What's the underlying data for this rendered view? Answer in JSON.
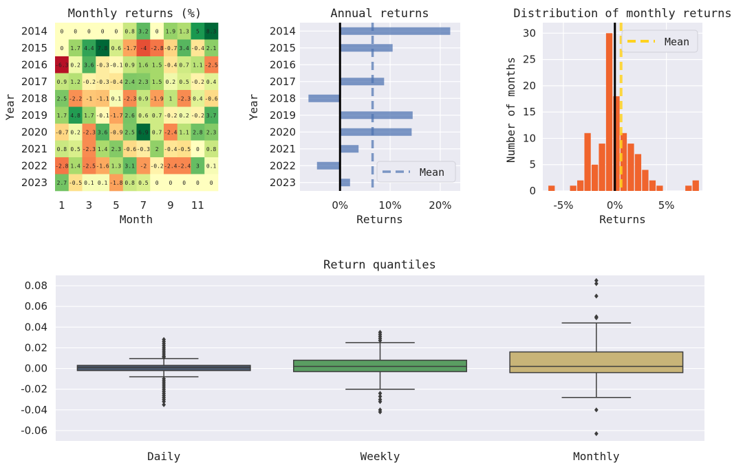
{
  "chart_data": [
    {
      "type": "heatmap",
      "title": "Monthly returns (%)",
      "xlabel": "Month",
      "ylabel": "Year",
      "years": [
        "2014",
        "2015",
        "2016",
        "2017",
        "2018",
        "2019",
        "2020",
        "2021",
        "2022",
        "2023"
      ],
      "months": [
        1,
        2,
        3,
        4,
        5,
        6,
        7,
        8,
        9,
        10,
        11,
        12
      ],
      "xticks": [
        "1",
        "3",
        "5",
        "7",
        "9",
        "11"
      ],
      "values": [
        [
          0,
          0,
          0,
          0,
          0,
          0.8,
          3.2,
          0,
          1.9,
          1.3,
          5,
          8.3
        ],
        [
          0,
          1.7,
          4.4,
          7.8,
          0.6,
          -1.7,
          -4,
          -2.8,
          -0.7,
          3.4,
          -0.4,
          2.1
        ],
        [
          -6.3,
          0.2,
          3.6,
          -0.3,
          -0.1,
          0.9,
          1.6,
          1.5,
          -0.4,
          0.7,
          1.1,
          -2.5
        ],
        [
          0.9,
          1.2,
          -0.2,
          -0.3,
          -0.4,
          2.4,
          2.3,
          1.5,
          0.2,
          0.5,
          -0.2,
          0.4
        ],
        [
          2.5,
          -2.2,
          -1,
          -1.1,
          0.1,
          -2.3,
          0.9,
          -1.9,
          1,
          -2.3,
          0.4,
          -0.6
        ],
        [
          1.7,
          4.8,
          1.7,
          -0.1,
          -1.7,
          2.6,
          0.6,
          0.7,
          -0.2,
          0.2,
          -0.2,
          3.7
        ],
        [
          -0.7,
          0.2,
          -2.3,
          3.6,
          -0.9,
          2.5,
          6.9,
          0.7,
          -2.4,
          1.1,
          2.8,
          2.3
        ],
        [
          0.8,
          0.5,
          -2.3,
          1.4,
          2.3,
          -0.6,
          -0.3,
          2,
          -0.4,
          -0.5,
          0,
          0.8
        ],
        [
          -2.8,
          1.4,
          -2.5,
          -1.6,
          1.3,
          3.1,
          -2,
          -0.2,
          -2.4,
          -2.4,
          3,
          0.1
        ],
        [
          2.7,
          -0.5,
          0.1,
          0.1,
          -1.8,
          0.8,
          0.5,
          0,
          0,
          0,
          0,
          0
        ]
      ],
      "colormap": "RdYlGn",
      "value_range": [
        -7,
        7
      ]
    },
    {
      "type": "bar",
      "orientation": "horizontal",
      "title": "Annual returns",
      "xlabel": "Returns",
      "ylabel": "Year",
      "categories": [
        "2014",
        "2015",
        "2016",
        "2017",
        "2018",
        "2019",
        "2020",
        "2021",
        "2022",
        "2023"
      ],
      "values": [
        22,
        10.5,
        0,
        8.8,
        -6.3,
        14.5,
        14.3,
        3.7,
        -4.6,
        2
      ],
      "mean": 6.5,
      "xlim": [
        -8,
        24
      ],
      "xticks": [
        "0%",
        "10%",
        "20%"
      ],
      "legend": [
        "Mean"
      ],
      "legend_position": "lower-right",
      "bar_color": "#4c72b0",
      "mean_color": "#4c72b0"
    },
    {
      "type": "histogram",
      "title": "Distribution of monthly returns",
      "xlabel": "Returns",
      "ylabel": "Number of months",
      "bin_edges": [
        -6.5,
        -5.8,
        -5.1,
        -4.4,
        -3.7,
        -3.0,
        -2.3,
        -1.6,
        -0.9,
        -0.2,
        0.5,
        1.2,
        1.9,
        2.6,
        3.3,
        4.0,
        4.7,
        5.4,
        6.1,
        6.8,
        7.5,
        8.2
      ],
      "counts": [
        1,
        0,
        0,
        1,
        2,
        11,
        5,
        9,
        30,
        18,
        11,
        9,
        7,
        4,
        2,
        1,
        0,
        0,
        0,
        1,
        2
      ],
      "mean": 0.6,
      "xlim": [
        -7,
        8.5
      ],
      "ylim": [
        0,
        32
      ],
      "xticks": [
        "-5%",
        "0%",
        "5%"
      ],
      "yticks": [
        "0",
        "5",
        "10",
        "15",
        "20",
        "25",
        "30"
      ],
      "legend": [
        "Mean"
      ],
      "legend_position": "top-right",
      "bar_color": "#f0642d",
      "mean_color": "#ffd21f"
    },
    {
      "type": "box",
      "title": "Return quantiles",
      "categories": [
        "Daily",
        "Weekly",
        "Monthly"
      ],
      "ylim": [
        -0.07,
        0.09
      ],
      "yticks": [
        "-0.06",
        "-0.04",
        "-0.02",
        "0.00",
        "0.02",
        "0.04",
        "0.06",
        "0.08"
      ],
      "series": [
        {
          "name": "Daily",
          "color": "#4c5a6e",
          "q1": -0.002,
          "median": 0.001,
          "q3": 0.003,
          "whisker_low": -0.008,
          "whisker_high": 0.0095,
          "outliers": [
            0.028,
            0.026,
            0.024,
            0.022,
            0.02,
            0.018,
            0.016,
            0.014,
            0.012,
            0.011,
            -0.01,
            -0.012,
            -0.014,
            -0.016,
            -0.018,
            -0.02,
            -0.022,
            -0.024,
            -0.026,
            -0.028,
            -0.03,
            -0.032,
            -0.035
          ]
        },
        {
          "name": "Weekly",
          "color": "#5a9e62",
          "q1": -0.003,
          "median": 0.002,
          "q3": 0.008,
          "whisker_low": -0.02,
          "whisker_high": 0.025,
          "outliers": [
            0.035,
            0.033,
            0.031,
            0.029,
            0.027,
            -0.024,
            -0.027,
            -0.03,
            -0.032,
            -0.04,
            -0.042
          ]
        },
        {
          "name": "Monthly",
          "color": "#c8b478",
          "q1": -0.004,
          "median": 0.002,
          "q3": 0.016,
          "whisker_low": -0.028,
          "whisker_high": 0.044,
          "outliers": [
            0.085,
            0.082,
            0.07,
            0.05,
            0.049,
            -0.04,
            -0.063
          ]
        }
      ]
    }
  ]
}
